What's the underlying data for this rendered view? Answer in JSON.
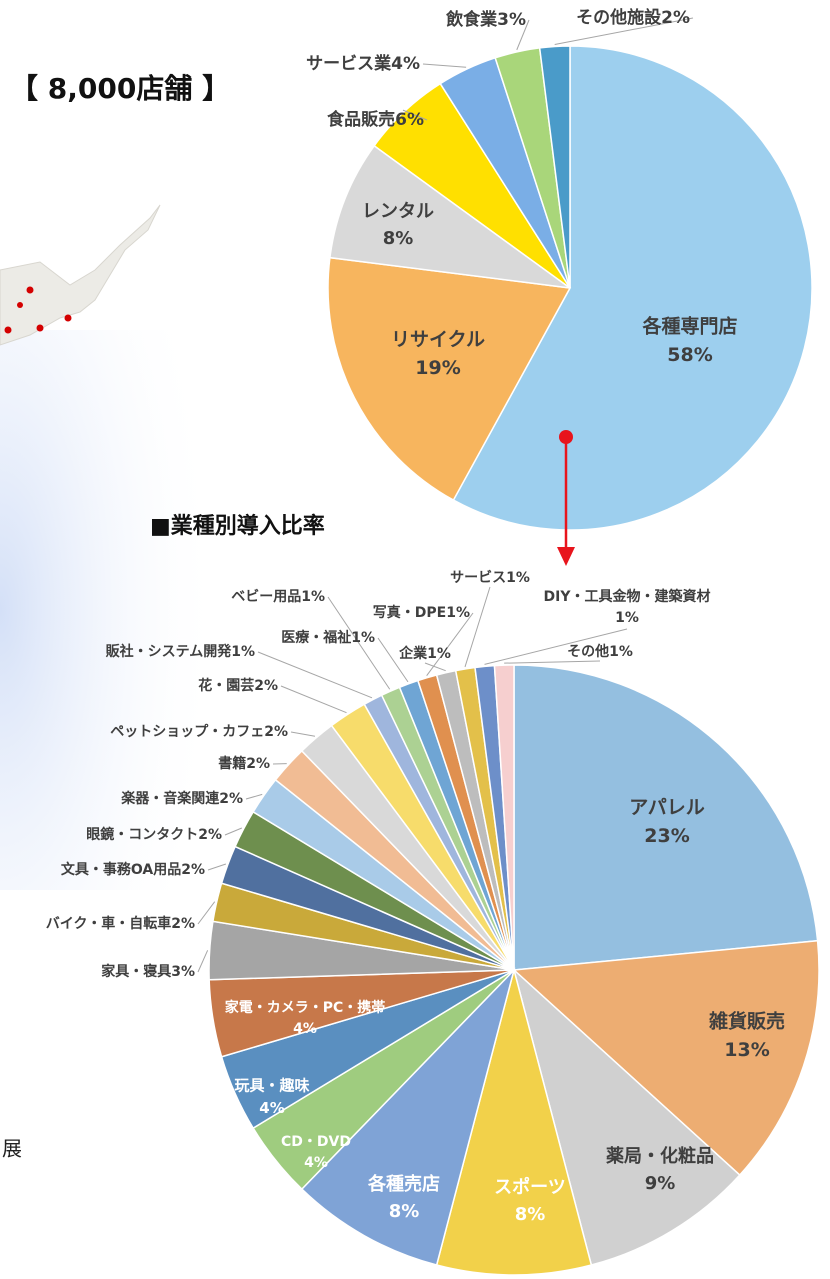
{
  "notes_text": [
    "展"
  ],
  "chart_data": [
    {
      "type": "pie",
      "title": "【 8,000店舗 】",
      "categories": [
        "各種専門店",
        "リサイクル",
        "レンタル",
        "食品販売",
        "サービス業",
        "飲食業",
        "その他施設"
      ],
      "values": [
        58,
        19,
        8,
        6,
        4,
        3,
        2
      ],
      "value_labels": [
        "58%",
        "19%",
        "8%",
        "6%",
        "4%",
        "3%",
        "2%"
      ],
      "colors": [
        "#9dcfee",
        "#f7b55e",
        "#d9d9d9",
        "#ffe000",
        "#7aaee6",
        "#a9d67a",
        "#4a9bc9"
      ]
    },
    {
      "type": "pie",
      "title": "■業種別導入比率",
      "categories": [
        "アパレル",
        "雑貨販売",
        "薬局・化粧品",
        "スポーツ",
        "各種売店",
        "CD・DVD",
        "玩具・趣味",
        "家電・カメラ・PC・携帯",
        "家具・寝具",
        "バイク・車・自転車",
        "文具・事務OA用品",
        "眼鏡・コンタクト",
        "楽器・音楽関連",
        "書籍",
        "ペットショップ・カフェ",
        "花・園芸",
        "販社・システム開発",
        "ベビー用品",
        "医療・福祉",
        "写真・DPE",
        "企業",
        "サービス",
        "DIY・工具金物・建築資材",
        "その他"
      ],
      "values": [
        23,
        13,
        9,
        8,
        8,
        4,
        4,
        4,
        3,
        2,
        2,
        2,
        2,
        2,
        2,
        2,
        1,
        1,
        1,
        1,
        1,
        1,
        1,
        1
      ],
      "value_labels": [
        "23%",
        "13%",
        "9%",
        "8%",
        "8%",
        "4%",
        "4%",
        "4%",
        "3%",
        "2%",
        "2%",
        "2%",
        "2%",
        "2%",
        "2%",
        "2%",
        "1%",
        "1%",
        "1%",
        "1%",
        "1%",
        "1%",
        "1%",
        "1%"
      ],
      "colors": [
        "#94bfe0",
        "#edad72",
        "#d0d0d0",
        "#f2d14a",
        "#7fa3d6",
        "#9fcc7f",
        "#5a8fc0",
        "#c7784a",
        "#a5a5a5",
        "#c9a93a",
        "#50709f",
        "#6e8f4e",
        "#a9cbe8",
        "#f1bc94",
        "#d9d9d9",
        "#f7dc6b",
        "#9fb6dd",
        "#acd193",
        "#6fa5d4",
        "#e0904f",
        "#bdbdbd",
        "#e3c04a",
        "#6d8fc9",
        "#f6cfcf"
      ]
    }
  ]
}
